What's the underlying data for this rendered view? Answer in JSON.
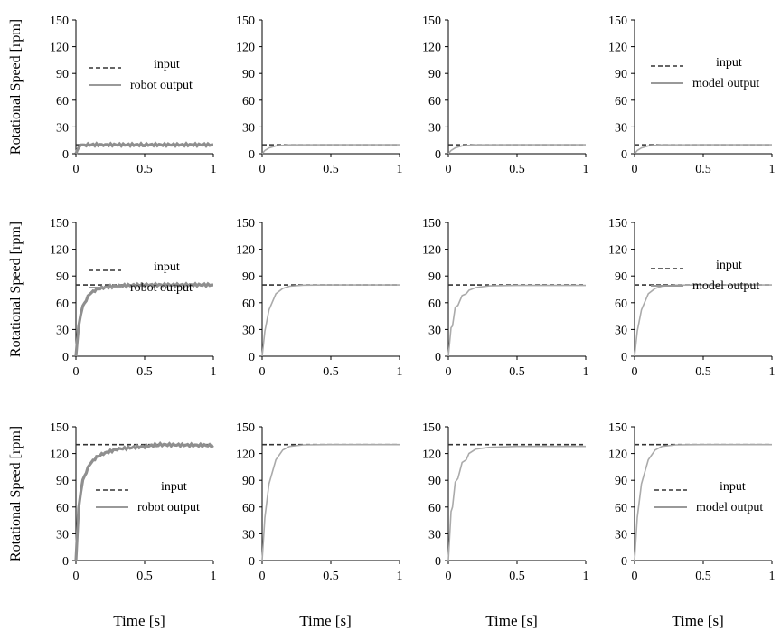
{
  "figure": {
    "ylabel": "Rotational Speed [rpm]",
    "xlabel": "Time [s]"
  },
  "chart_data": [
    {
      "type": "line",
      "row": 0,
      "col": 0,
      "x": [
        0,
        0.02,
        0.05,
        0.1,
        0.2,
        0.5,
        1.0
      ],
      "xticks": [
        "0",
        "0.5",
        "1"
      ],
      "yticks": [
        "0",
        "30",
        "60",
        "90",
        "120",
        "150"
      ],
      "xlim": [
        0,
        1
      ],
      "ylim": [
        0,
        150
      ],
      "series": [
        {
          "name": "input",
          "style": "dashed",
          "x": [
            0,
            1
          ],
          "y": [
            10,
            10
          ]
        },
        {
          "name": "robot output",
          "style": "solid-noisy",
          "y": [
            0,
            8,
            9.5,
            10,
            10,
            10,
            10
          ]
        }
      ],
      "legend": {
        "entries": [
          "input",
          "robot output"
        ],
        "position": "top-left"
      }
    },
    {
      "type": "line",
      "row": 0,
      "col": 1,
      "x": [
        0,
        0.02,
        0.05,
        0.1,
        0.2,
        0.5,
        1.0
      ],
      "xticks": [
        "0",
        "0.5",
        "1"
      ],
      "yticks": [
        "0",
        "30",
        "60",
        "90",
        "120",
        "150"
      ],
      "xlim": [
        0,
        1
      ],
      "ylim": [
        0,
        150
      ],
      "series": [
        {
          "style": "dashed",
          "x": [
            0,
            1
          ],
          "y": [
            10,
            10
          ]
        },
        {
          "style": "solid",
          "y": [
            0,
            3.5,
            6.5,
            8.8,
            9.9,
            10,
            10
          ]
        }
      ]
    },
    {
      "type": "line",
      "row": 0,
      "col": 2,
      "x": [
        0,
        0.02,
        0.05,
        0.1,
        0.2,
        0.5,
        1.0
      ],
      "xticks": [
        "0",
        "0.5",
        "1"
      ],
      "yticks": [
        "0",
        "30",
        "60",
        "90",
        "120",
        "150"
      ],
      "xlim": [
        0,
        1
      ],
      "ylim": [
        0,
        150
      ],
      "series": [
        {
          "style": "dashed",
          "x": [
            0,
            1
          ],
          "y": [
            10,
            10
          ]
        },
        {
          "style": "solid",
          "y": [
            0,
            3.5,
            6.5,
            8.8,
            9.9,
            10,
            10
          ]
        }
      ]
    },
    {
      "type": "line",
      "row": 0,
      "col": 3,
      "x": [
        0,
        0.02,
        0.05,
        0.1,
        0.2,
        0.5,
        1.0
      ],
      "xticks": [
        "0",
        "0.5",
        "1"
      ],
      "yticks": [
        "0",
        "30",
        "60",
        "90",
        "120",
        "150"
      ],
      "xlim": [
        0,
        1
      ],
      "ylim": [
        0,
        150
      ],
      "series": [
        {
          "name": "input",
          "style": "dashed",
          "x": [
            0,
            1
          ],
          "y": [
            10,
            10
          ]
        },
        {
          "name": "model output",
          "style": "solid",
          "y": [
            0,
            3.5,
            6.5,
            8.8,
            9.9,
            10,
            10
          ]
        }
      ],
      "legend": {
        "entries": [
          "input",
          "model output"
        ],
        "position": "top-right"
      }
    },
    {
      "type": "line",
      "row": 1,
      "col": 0,
      "x": [
        0,
        0.02,
        0.05,
        0.1,
        0.15,
        0.2,
        0.3,
        0.5,
        1.0
      ],
      "xticks": [
        "0",
        "0.5",
        "1"
      ],
      "yticks": [
        "0",
        "30",
        "60",
        "90",
        "120",
        "150"
      ],
      "xlim": [
        0,
        1
      ],
      "ylim": [
        0,
        150
      ],
      "series": [
        {
          "name": "input",
          "style": "dashed",
          "x": [
            0,
            1
          ],
          "y": [
            80,
            80
          ]
        },
        {
          "name": "robot output",
          "style": "solid-noisy",
          "y": [
            0,
            35,
            56,
            70,
            75,
            77,
            79,
            80,
            80
          ]
        }
      ],
      "legend": {
        "entries": [
          "input",
          "robot output"
        ],
        "position": "top-left"
      }
    },
    {
      "type": "line",
      "row": 1,
      "col": 1,
      "x": [
        0,
        0.02,
        0.05,
        0.1,
        0.15,
        0.2,
        0.3,
        0.5,
        1.0
      ],
      "xticks": [
        "0",
        "0.5",
        "1"
      ],
      "yticks": [
        "0",
        "30",
        "60",
        "90",
        "120",
        "150"
      ],
      "xlim": [
        0,
        1
      ],
      "ylim": [
        0,
        150
      ],
      "series": [
        {
          "style": "dashed",
          "x": [
            0,
            1
          ],
          "y": [
            80,
            80
          ]
        },
        {
          "style": "solid",
          "y": [
            0,
            28,
            52,
            70,
            76,
            78.5,
            79.8,
            80,
            80
          ]
        }
      ]
    },
    {
      "type": "line",
      "row": 1,
      "col": 2,
      "x": [
        0,
        0.02,
        0.03,
        0.05,
        0.07,
        0.1,
        0.13,
        0.15,
        0.2,
        0.3,
        0.5,
        1.0
      ],
      "xticks": [
        "0",
        "0.5",
        "1"
      ],
      "yticks": [
        "0",
        "30",
        "60",
        "90",
        "120",
        "150"
      ],
      "xlim": [
        0,
        1
      ],
      "ylim": [
        0,
        150
      ],
      "series": [
        {
          "style": "dashed",
          "x": [
            0,
            1
          ],
          "y": [
            80,
            80
          ]
        },
        {
          "style": "solid",
          "y": [
            0,
            32,
            34,
            55,
            57,
            68,
            70,
            74,
            77,
            79,
            79.5,
            79.5
          ]
        }
      ]
    },
    {
      "type": "line",
      "row": 1,
      "col": 3,
      "x": [
        0,
        0.02,
        0.05,
        0.1,
        0.15,
        0.2,
        0.3,
        0.5,
        1.0
      ],
      "xticks": [
        "0",
        "0.5",
        "1"
      ],
      "yticks": [
        "0",
        "30",
        "60",
        "90",
        "120",
        "150"
      ],
      "xlim": [
        0,
        1
      ],
      "ylim": [
        0,
        150
      ],
      "series": [
        {
          "name": "input",
          "style": "dashed",
          "x": [
            0,
            1
          ],
          "y": [
            80,
            80
          ]
        },
        {
          "name": "model output",
          "style": "solid",
          "y": [
            0,
            28,
            52,
            70,
            76,
            78.5,
            79.8,
            80,
            80
          ]
        }
      ],
      "legend": {
        "entries": [
          "input",
          "model output"
        ],
        "position": "top-right"
      }
    },
    {
      "type": "line",
      "row": 2,
      "col": 0,
      "x": [
        0,
        0.02,
        0.05,
        0.1,
        0.15,
        0.2,
        0.3,
        0.5,
        0.6,
        1.0
      ],
      "xticks": [
        "0",
        "0.5",
        "1"
      ],
      "yticks": [
        "0",
        "30",
        "60",
        "90",
        "120",
        "150"
      ],
      "xlim": [
        0,
        1
      ],
      "ylim": [
        0,
        150
      ],
      "series": [
        {
          "name": "input",
          "style": "dashed",
          "x": [
            0,
            1
          ],
          "y": [
            130,
            130
          ]
        },
        {
          "name": "robot output",
          "style": "solid-noisy",
          "y": [
            0,
            60,
            90,
            108,
            116,
            120,
            125,
            128,
            130,
            129
          ]
        }
      ],
      "legend": {
        "entries": [
          "input",
          "robot output"
        ],
        "position": "center-right"
      }
    },
    {
      "type": "line",
      "row": 2,
      "col": 1,
      "x": [
        0,
        0.02,
        0.05,
        0.1,
        0.15,
        0.2,
        0.3,
        0.5,
        1.0
      ],
      "xticks": [
        "0",
        "0.5",
        "1"
      ],
      "yticks": [
        "0",
        "30",
        "60",
        "90",
        "120",
        "150"
      ],
      "xlim": [
        0,
        1
      ],
      "ylim": [
        0,
        150
      ],
      "series": [
        {
          "style": "dashed",
          "x": [
            0,
            1
          ],
          "y": [
            130,
            130
          ]
        },
        {
          "style": "solid",
          "y": [
            0,
            48,
            86,
            113,
            124,
            128,
            129.7,
            130,
            130
          ]
        }
      ]
    },
    {
      "type": "line",
      "row": 2,
      "col": 2,
      "x": [
        0,
        0.02,
        0.03,
        0.05,
        0.07,
        0.1,
        0.13,
        0.15,
        0.2,
        0.3,
        0.5,
        1.0
      ],
      "xticks": [
        "0",
        "0.5",
        "1"
      ],
      "yticks": [
        "0",
        "30",
        "60",
        "90",
        "120",
        "150"
      ],
      "xlim": [
        0,
        1
      ],
      "ylim": [
        0,
        150
      ],
      "series": [
        {
          "style": "dashed",
          "x": [
            0,
            1
          ],
          "y": [
            130,
            130
          ]
        },
        {
          "style": "solid",
          "y": [
            0,
            55,
            60,
            88,
            92,
            110,
            113,
            120,
            125,
            127,
            128,
            128
          ]
        }
      ]
    },
    {
      "type": "line",
      "row": 2,
      "col": 3,
      "x": [
        0,
        0.02,
        0.05,
        0.1,
        0.15,
        0.2,
        0.3,
        0.5,
        1.0
      ],
      "xticks": [
        "0",
        "0.5",
        "1"
      ],
      "yticks": [
        "0",
        "30",
        "60",
        "90",
        "120",
        "150"
      ],
      "xlim": [
        0,
        1
      ],
      "ylim": [
        0,
        150
      ],
      "series": [
        {
          "name": "input",
          "style": "dashed",
          "x": [
            0,
            1
          ],
          "y": [
            130,
            130
          ]
        },
        {
          "name": "model output",
          "style": "solid",
          "y": [
            0,
            48,
            86,
            113,
            124,
            128,
            129.7,
            130,
            130
          ]
        }
      ],
      "legend": {
        "entries": [
          "input",
          "model output"
        ],
        "position": "center-right"
      }
    }
  ]
}
